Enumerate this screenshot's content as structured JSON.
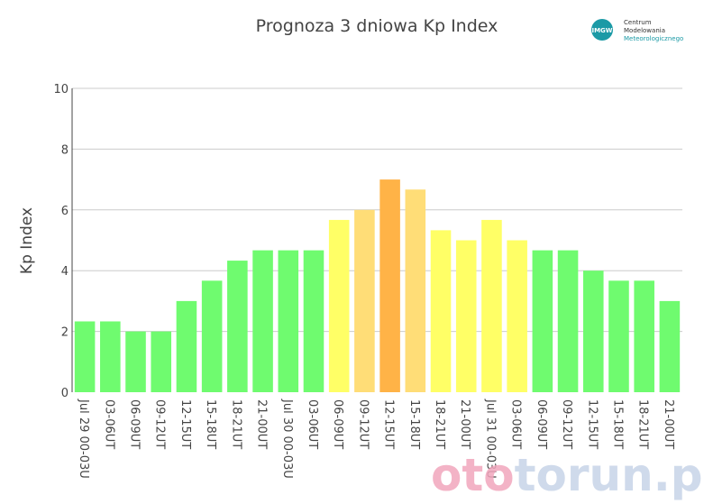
{
  "chart_data": {
    "type": "bar",
    "title": "Prognoza 3 dniowa Kp Index",
    "ylabel": "Kp Index",
    "xlabel": "",
    "ylim": [
      0,
      10
    ],
    "yticks": [
      0,
      2,
      4,
      6,
      8,
      10
    ],
    "grid": true,
    "categories": [
      "Jul 29 00-03U",
      "03-06UT",
      "06-09UT",
      "09-12UT",
      "12-15UT",
      "15-18UT",
      "18-21UT",
      "21-00UT",
      "Jul 30 00-03U",
      "03-06UT",
      "06-09UT",
      "09-12UT",
      "12-15UT",
      "15-18UT",
      "18-21UT",
      "21-00UT",
      "Jul 31 00-03U",
      "03-06UT",
      "06-09UT",
      "09-12UT",
      "12-15UT",
      "15-18UT",
      "18-21UT",
      "21-00UT"
    ],
    "values": [
      2.33,
      2.33,
      2.0,
      2.0,
      3.0,
      3.67,
      4.33,
      4.67,
      4.67,
      4.67,
      5.67,
      6.0,
      7.0,
      6.67,
      5.33,
      5.0,
      5.67,
      5.0,
      4.67,
      4.67,
      4.0,
      3.67,
      3.67,
      3.0
    ],
    "colors": {
      "low": "#6ffb6f",
      "g1": "#ffff66",
      "g2": "#ffdd77",
      "g3": "#ffb347",
      "axis": "#444444",
      "grid": "#cccccc"
    }
  },
  "logo": {
    "badge": "IMGW",
    "line1": "Centrum",
    "line2": "Modelowania",
    "line3": "Meteorologicznego"
  },
  "watermark": {
    "part1": "oto",
    "part2": "torun.pl"
  }
}
